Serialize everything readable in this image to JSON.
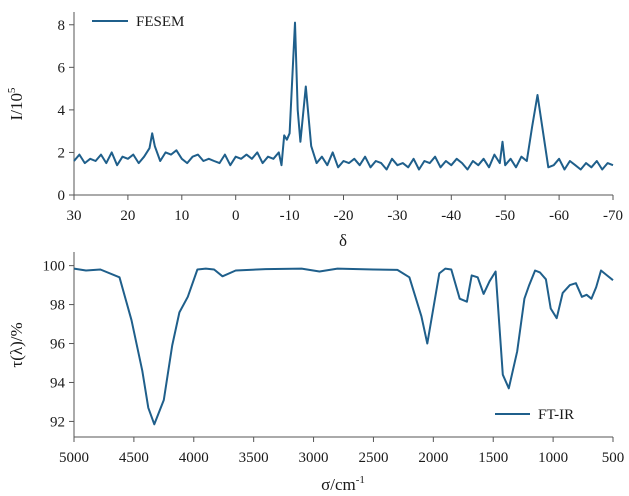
{
  "chart_data": [
    {
      "type": "line",
      "xlabel": "δ",
      "ylabel_base": "I/10",
      "ylabel_exp": "5",
      "xlim": [
        30,
        -70
      ],
      "ylim": [
        0,
        8.6
      ],
      "xticks": [
        30,
        20,
        10,
        0,
        -10,
        -20,
        -30,
        -40,
        -50,
        -60,
        -70
      ],
      "yticks": [
        0,
        2,
        4,
        6,
        8
      ],
      "legend_position": "top-left",
      "color": "#1f5f8b",
      "series": [
        {
          "name": "FESEM",
          "x": [
            30,
            29,
            28,
            27,
            26,
            25,
            24,
            23,
            22,
            21,
            20,
            19,
            18,
            17,
            16,
            15.5,
            15,
            14,
            13,
            12,
            11,
            10,
            9,
            8,
            7,
            6,
            5,
            4,
            3,
            2,
            1,
            0,
            -1,
            -2,
            -3,
            -4,
            -5,
            -6,
            -7,
            -8,
            -8.5,
            -9,
            -9.5,
            -10,
            -11,
            -11.5,
            -12,
            -13,
            -14,
            -15,
            -16,
            -17,
            -18,
            -19,
            -20,
            -21,
            -22,
            -23,
            -24,
            -25,
            -26,
            -27,
            -28,
            -29,
            -30,
            -31,
            -32,
            -33,
            -34,
            -35,
            -36,
            -37,
            -38,
            -39,
            -40,
            -41,
            -42,
            -43,
            -44,
            -45,
            -46,
            -47,
            -48,
            -49,
            -49.5,
            -50,
            -51,
            -52,
            -53,
            -54,
            -55,
            -56,
            -57,
            -58,
            -59,
            -60,
            -61,
            -62,
            -63,
            -64,
            -65,
            -66,
            -67,
            -68,
            -69,
            -70
          ],
          "y": [
            1.6,
            1.9,
            1.5,
            1.7,
            1.6,
            1.9,
            1.5,
            2.0,
            1.4,
            1.8,
            1.7,
            1.9,
            1.5,
            1.8,
            2.2,
            2.9,
            2.3,
            1.6,
            2.0,
            1.9,
            2.1,
            1.7,
            1.5,
            1.8,
            1.9,
            1.6,
            1.7,
            1.6,
            1.5,
            1.9,
            1.4,
            1.8,
            1.7,
            1.9,
            1.7,
            2.0,
            1.5,
            1.8,
            1.7,
            2.0,
            1.4,
            2.8,
            2.6,
            2.9,
            8.1,
            4.0,
            2.5,
            5.1,
            2.3,
            1.5,
            1.8,
            1.4,
            2.0,
            1.3,
            1.6,
            1.5,
            1.7,
            1.4,
            1.8,
            1.3,
            1.6,
            1.5,
            1.2,
            1.7,
            1.4,
            1.5,
            1.3,
            1.7,
            1.2,
            1.6,
            1.5,
            1.8,
            1.3,
            1.6,
            1.4,
            1.7,
            1.5,
            1.2,
            1.6,
            1.4,
            1.7,
            1.3,
            1.9,
            1.5,
            2.5,
            1.4,
            1.7,
            1.3,
            1.8,
            1.6,
            3.2,
            4.7,
            3.0,
            1.3,
            1.4,
            1.7,
            1.2,
            1.6,
            1.4,
            1.2,
            1.5,
            1.3,
            1.6,
            1.2,
            1.5,
            1.4
          ]
        }
      ]
    },
    {
      "type": "line",
      "xlabel_base": "σ/cm",
      "xlabel_exp": "-1",
      "ylabel": "τ(λ)/%",
      "xlim": [
        5000,
        500
      ],
      "ylim": [
        91.2,
        100.7
      ],
      "xticks": [
        5000,
        4500,
        4000,
        3500,
        3000,
        2500,
        2000,
        1500,
        1000,
        500
      ],
      "yticks": [
        92,
        94,
        96,
        98,
        100
      ],
      "legend_position": "bottom-right",
      "color": "#1f5f8b",
      "series": [
        {
          "name": "FT-IR",
          "x": [
            5000,
            4900,
            4780,
            4620,
            4520,
            4430,
            4380,
            4330,
            4250,
            4180,
            4120,
            4050,
            3970,
            3900,
            3830,
            3760,
            3650,
            3400,
            3100,
            2950,
            2800,
            2500,
            2300,
            2200,
            2100,
            2050,
            2000,
            1950,
            1900,
            1850,
            1780,
            1720,
            1680,
            1630,
            1580,
            1530,
            1480,
            1420,
            1370,
            1300,
            1240,
            1200,
            1150,
            1110,
            1060,
            1020,
            970,
            920,
            860,
            810,
            760,
            720,
            680,
            640,
            600,
            550,
            500
          ],
          "y": [
            99.85,
            99.75,
            99.8,
            99.4,
            97.2,
            94.6,
            92.7,
            91.85,
            93.1,
            95.9,
            97.6,
            98.4,
            99.8,
            99.85,
            99.8,
            99.45,
            99.75,
            99.82,
            99.85,
            99.7,
            99.85,
            99.8,
            99.78,
            99.4,
            97.4,
            96.0,
            97.8,
            99.6,
            99.85,
            99.8,
            98.3,
            98.15,
            99.5,
            99.4,
            98.55,
            99.2,
            99.7,
            94.4,
            93.7,
            95.6,
            98.3,
            99.0,
            99.75,
            99.65,
            99.3,
            97.8,
            97.3,
            98.6,
            99.0,
            99.1,
            98.4,
            98.5,
            98.3,
            98.9,
            99.75,
            99.5,
            99.25
          ]
        }
      ]
    }
  ]
}
